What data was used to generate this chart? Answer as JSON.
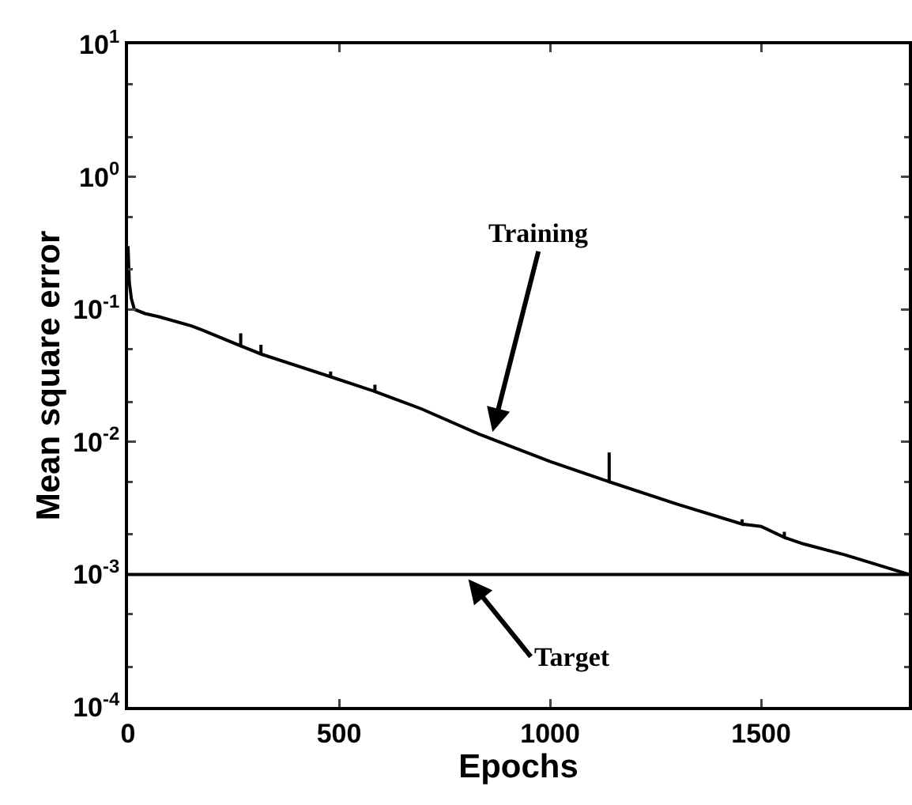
{
  "chart_data": {
    "type": "line",
    "xlabel": "Epochs",
    "ylabel": "Mean square error",
    "log": "y",
    "grid": false,
    "marker": "none",
    "line_style": "solid",
    "xlim": [
      0,
      1850
    ],
    "xticks": [
      0,
      500,
      1000,
      1500
    ],
    "ylim": [
      0.0001,
      10
    ],
    "yticks": [
      {
        "value": 0.0001,
        "label": "10$^{-4}$"
      },
      {
        "value": 0.001,
        "label": "10$^{-3}$"
      },
      {
        "value": 0.01,
        "label": "10$^{-2}$"
      },
      {
        "value": 0.1,
        "label": "10$^{-1}$"
      },
      {
        "value": 1,
        "label": "10$^{0}$"
      },
      {
        "value": 10,
        "label": "10$^{1}$"
      }
    ],
    "series": [
      {
        "color": "#000000",
        "x": [
          0,
          3,
          8,
          15,
          40,
          73,
          150,
          185,
          267,
          267,
          267,
          315,
          315,
          315,
          480,
          480,
          480,
          585,
          585,
          585,
          696,
          830,
          1000,
          1140,
          1140,
          1140,
          1300,
          1455,
          1455,
          1455,
          1500,
          1555,
          1555,
          1555,
          1600,
          1700,
          1850
        ],
        "values": [
          0.3,
          0.16,
          0.12,
          0.1,
          0.093,
          0.088,
          0.075,
          0.068,
          0.053,
          0.066,
          0.053,
          0.046,
          0.054,
          0.046,
          0.031,
          0.034,
          0.031,
          0.024,
          0.027,
          0.024,
          0.0177,
          0.0115,
          0.0071,
          0.005,
          0.0083,
          0.005,
          0.0034,
          0.0024,
          0.0026,
          0.0024,
          0.0023,
          0.0019,
          0.0021,
          0.0019,
          0.0017,
          0.0014,
          0.001
        ]
      }
    ],
    "ref_lines": [
      {
        "axis": "y",
        "value": 0.001,
        "color": "#000000",
        "line_style": "solid"
      }
    ],
    "annotations": [
      {
        "text": "Training",
        "x": 860,
        "y": 0.0107
      },
      {
        "text": "Target",
        "x": 797,
        "y": 0.001
      }
    ]
  }
}
